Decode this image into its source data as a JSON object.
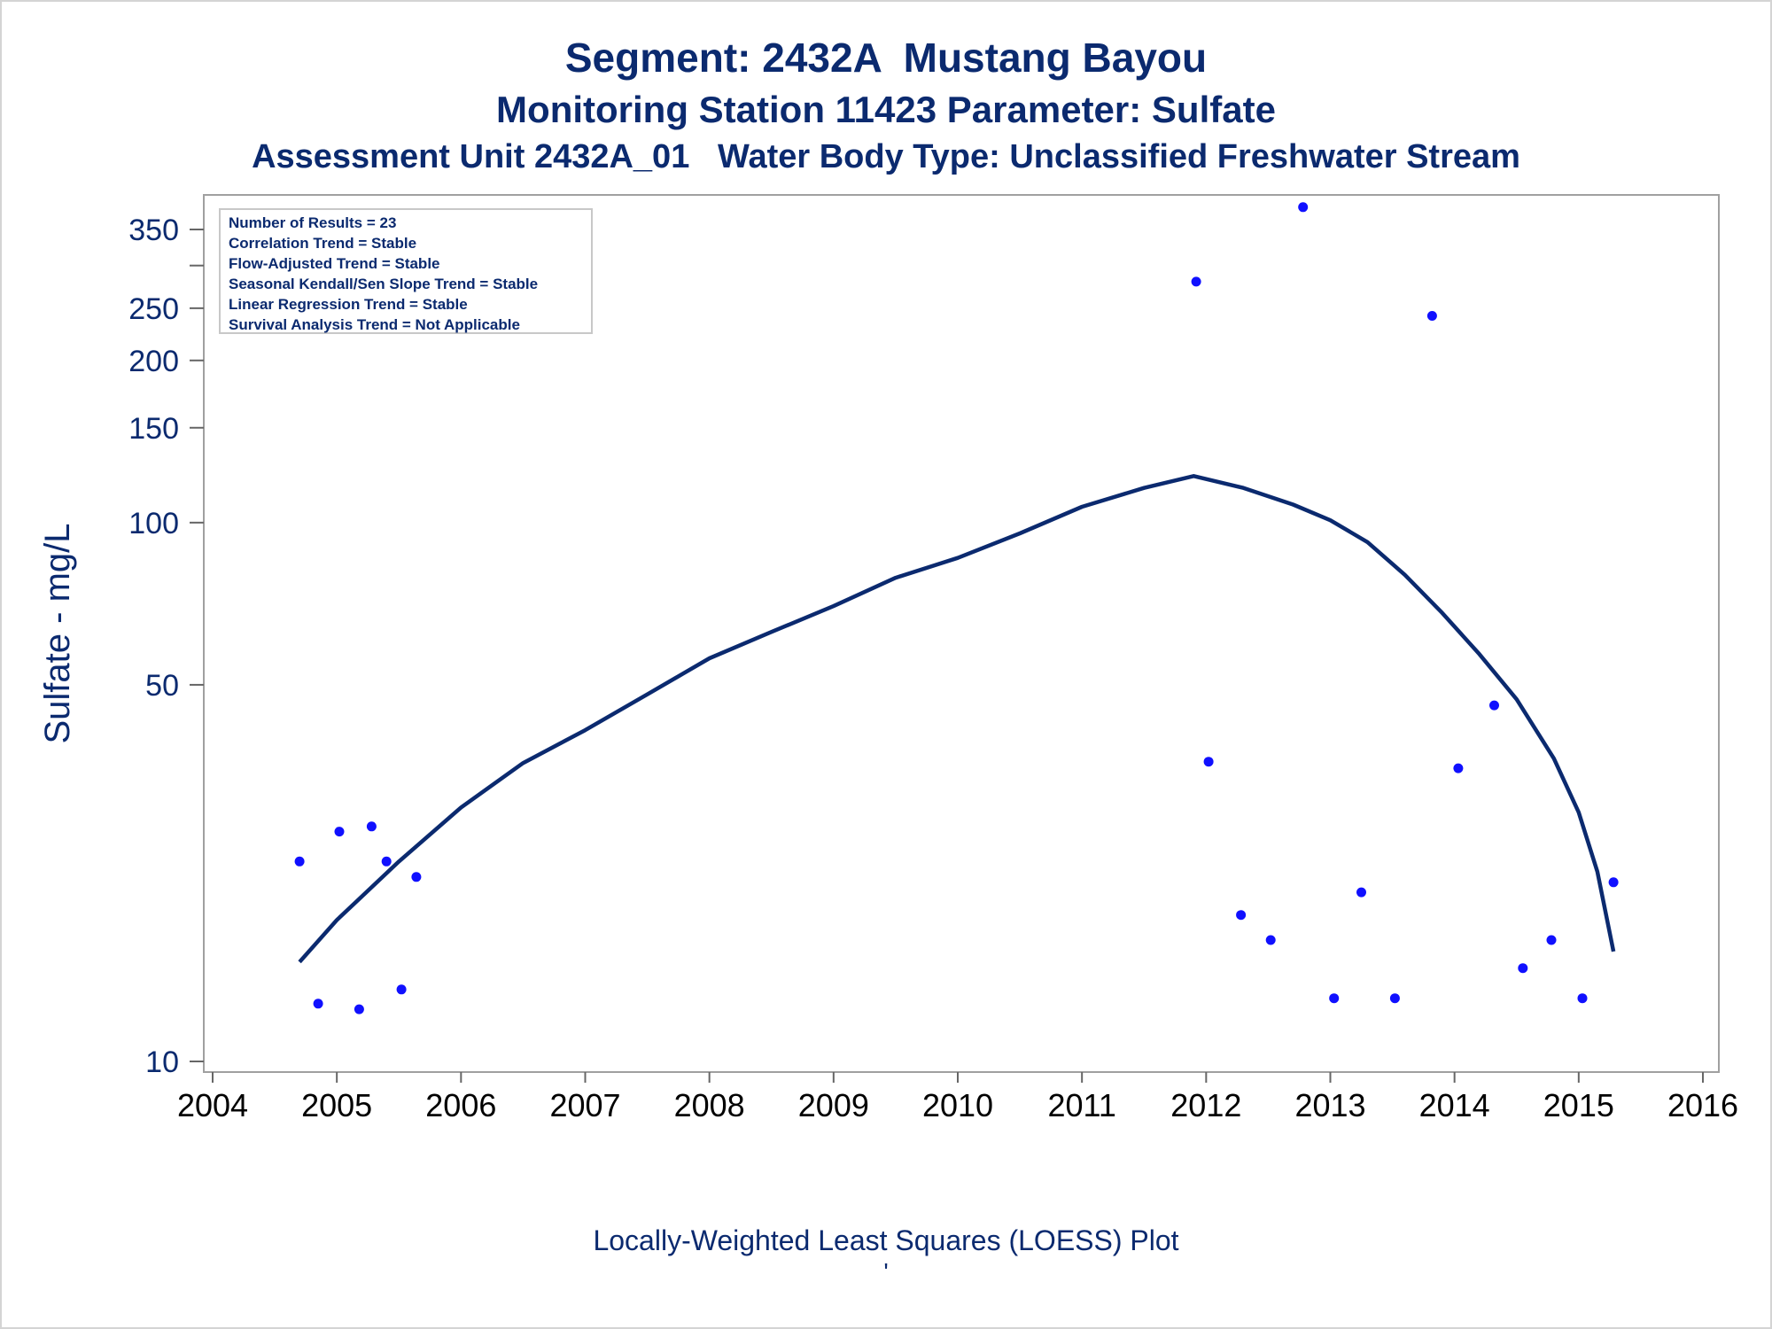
{
  "titles": {
    "line1": "Segment: 2432A  Mustang Bayou",
    "line2": "Monitoring Station 11423 Parameter: Sulfate",
    "line3": "Assessment Unit 2432A_01   Water Body Type: Unclassified Freshwater Stream"
  },
  "footnote": "Locally-Weighted Least Squares (LOESS) Plot",
  "footnote_mark": "'",
  "colors": {
    "text": "#0b2a6f",
    "points": "#1010ff",
    "line": "#0b2a6f",
    "frame": "#a0a0a0"
  },
  "chart_data": {
    "type": "scatter",
    "xlabel": "",
    "ylabel": "Sulfate - mg/L",
    "yscale": "log",
    "xlim": [
      2004,
      2016
    ],
    "ylim": [
      10,
      400
    ],
    "x_ticks": [
      2004,
      2005,
      2006,
      2007,
      2008,
      2009,
      2010,
      2011,
      2012,
      2013,
      2014,
      2015,
      2016
    ],
    "y_ticks": [
      10,
      50,
      100,
      150,
      200,
      250,
      350
    ],
    "y_minor_ticks": [
      300
    ],
    "grid": false,
    "stats_box": [
      "Number of Results = 23",
      "Correlation Trend = Stable",
      "Flow-Adjusted Trend = Stable",
      "Seasonal Kendall/Sen Slope Trend = Stable",
      "Linear Regression Trend = Stable",
      "Survival Analysis Trend = Not Applicable"
    ],
    "points": [
      {
        "x": 2004.7,
        "y": 23.5
      },
      {
        "x": 2004.85,
        "y": 12.8
      },
      {
        "x": 2005.02,
        "y": 26.7
      },
      {
        "x": 2005.18,
        "y": 12.5
      },
      {
        "x": 2005.28,
        "y": 27.3
      },
      {
        "x": 2005.4,
        "y": 23.5
      },
      {
        "x": 2005.52,
        "y": 13.6
      },
      {
        "x": 2005.64,
        "y": 22.0
      },
      {
        "x": 2011.92,
        "y": 280
      },
      {
        "x": 2012.02,
        "y": 36
      },
      {
        "x": 2012.28,
        "y": 18.7
      },
      {
        "x": 2012.52,
        "y": 16.8
      },
      {
        "x": 2012.78,
        "y": 385
      },
      {
        "x": 2013.03,
        "y": 13.1
      },
      {
        "x": 2013.25,
        "y": 20.6
      },
      {
        "x": 2013.52,
        "y": 13.1
      },
      {
        "x": 2013.82,
        "y": 242
      },
      {
        "x": 2014.03,
        "y": 35
      },
      {
        "x": 2014.32,
        "y": 45.8
      },
      {
        "x": 2014.55,
        "y": 14.9
      },
      {
        "x": 2014.78,
        "y": 16.8
      },
      {
        "x": 2015.03,
        "y": 13.1
      },
      {
        "x": 2015.28,
        "y": 21.5
      }
    ],
    "loess": [
      {
        "x": 2004.7,
        "y": 15.3
      },
      {
        "x": 2005.0,
        "y": 18.3
      },
      {
        "x": 2005.5,
        "y": 23.5
      },
      {
        "x": 2006.0,
        "y": 29.6
      },
      {
        "x": 2006.5,
        "y": 35.8
      },
      {
        "x": 2007.0,
        "y": 41.2
      },
      {
        "x": 2007.5,
        "y": 48.0
      },
      {
        "x": 2008.0,
        "y": 56.0
      },
      {
        "x": 2008.5,
        "y": 62.7
      },
      {
        "x": 2009.0,
        "y": 70.0
      },
      {
        "x": 2009.5,
        "y": 79.0
      },
      {
        "x": 2010.0,
        "y": 86.0
      },
      {
        "x": 2010.5,
        "y": 95.5
      },
      {
        "x": 2011.0,
        "y": 107.0
      },
      {
        "x": 2011.5,
        "y": 116.0
      },
      {
        "x": 2011.9,
        "y": 122.0
      },
      {
        "x": 2012.3,
        "y": 116.0
      },
      {
        "x": 2012.7,
        "y": 108.0
      },
      {
        "x": 2013.0,
        "y": 101.0
      },
      {
        "x": 2013.3,
        "y": 92.0
      },
      {
        "x": 2013.6,
        "y": 80.0
      },
      {
        "x": 2013.9,
        "y": 68.0
      },
      {
        "x": 2014.2,
        "y": 57.0
      },
      {
        "x": 2014.5,
        "y": 47.0
      },
      {
        "x": 2014.8,
        "y": 36.5
      },
      {
        "x": 2015.0,
        "y": 29.0
      },
      {
        "x": 2015.15,
        "y": 22.5
      },
      {
        "x": 2015.28,
        "y": 16.0
      }
    ]
  }
}
